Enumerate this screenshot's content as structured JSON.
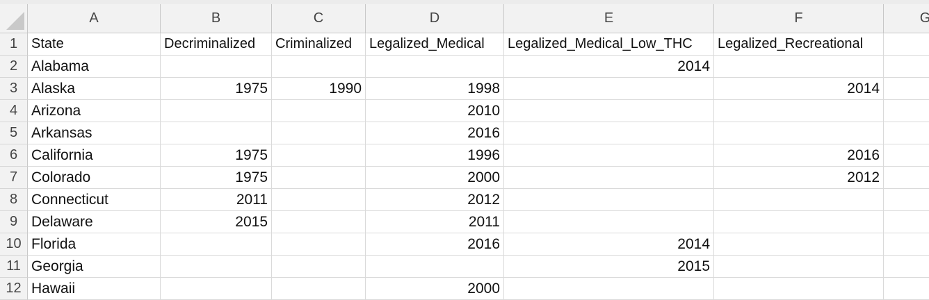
{
  "column_headers": [
    "A",
    "B",
    "C",
    "D",
    "E",
    "F",
    "G"
  ],
  "rows": [
    {
      "row": "1",
      "cells": [
        "State",
        "Decriminalized",
        "Criminalized",
        "Legalized_Medical",
        "Legalized_Medical_Low_THC",
        "Legalized_Recreational",
        ""
      ]
    },
    {
      "row": "2",
      "cells": [
        "Alabama",
        "",
        "",
        "",
        "2014",
        "",
        ""
      ]
    },
    {
      "row": "3",
      "cells": [
        "Alaska",
        "1975",
        "1990",
        "1998",
        "",
        "2014",
        ""
      ]
    },
    {
      "row": "4",
      "cells": [
        "Arizona",
        "",
        "",
        "2010",
        "",
        "",
        ""
      ]
    },
    {
      "row": "5",
      "cells": [
        "Arkansas",
        "",
        "",
        "2016",
        "",
        "",
        ""
      ]
    },
    {
      "row": "6",
      "cells": [
        "California",
        "1975",
        "",
        "1996",
        "",
        "2016",
        ""
      ]
    },
    {
      "row": "7",
      "cells": [
        "Colorado",
        "1975",
        "",
        "2000",
        "",
        "2012",
        ""
      ]
    },
    {
      "row": "8",
      "cells": [
        "Connecticut",
        "2011",
        "",
        "2012",
        "",
        "",
        ""
      ]
    },
    {
      "row": "9",
      "cells": [
        "Delaware",
        "2015",
        "",
        "2011",
        "",
        "",
        ""
      ]
    },
    {
      "row": "10",
      "cells": [
        "Florida",
        "",
        "",
        "2016",
        "2014",
        "",
        ""
      ]
    },
    {
      "row": "11",
      "cells": [
        "Georgia",
        "",
        "",
        "",
        "2015",
        "",
        ""
      ]
    },
    {
      "row": "12",
      "cells": [
        "Hawaii",
        "",
        "",
        "2000",
        "",
        "",
        ""
      ]
    }
  ]
}
